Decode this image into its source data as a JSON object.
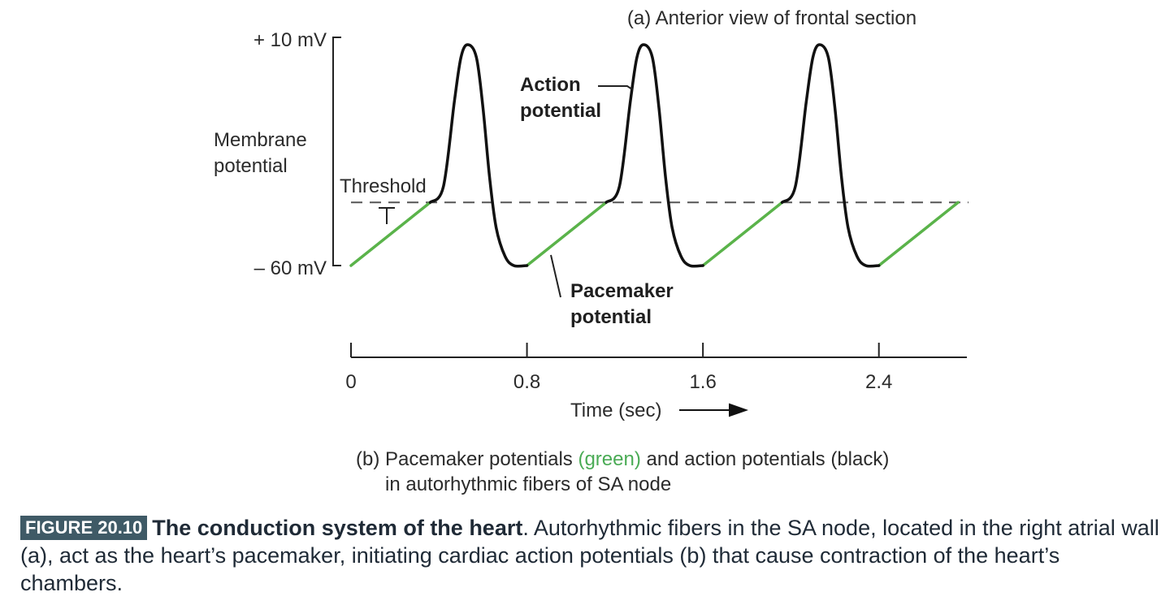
{
  "chart_data": {
    "type": "line",
    "panel_title": "(a) Anterior view of frontal section",
    "ylabel_lines": [
      "Membrane",
      "potential"
    ],
    "xlabel": "Time (sec)",
    "y_ticks": [
      "+ 10 mV",
      "– 60 mV"
    ],
    "ylim_mV": [
      -60,
      10
    ],
    "threshold_mV": -40,
    "x_ticks": [
      {
        "value": 0,
        "label": "0"
      },
      {
        "value": 0.8,
        "label": "0.8"
      },
      {
        "value": 1.6,
        "label": "1.6"
      },
      {
        "value": 2.4,
        "label": "2.4"
      }
    ],
    "xlim": [
      0,
      2.8
    ],
    "series": [
      {
        "kind": "pacemaker",
        "color": "#5ab34a",
        "segments": [
          [
            [
              0,
              -60
            ],
            [
              0.36,
              -40
            ]
          ],
          [
            [
              0.8,
              -60
            ],
            [
              1.16,
              -40
            ]
          ],
          [
            [
              1.6,
              -60
            ],
            [
              1.96,
              -40
            ]
          ],
          [
            [
              2.4,
              -60
            ],
            [
              2.76,
              -40
            ]
          ]
        ]
      },
      {
        "kind": "action",
        "color": "#111111",
        "segments": [
          [
            [
              0.36,
              -40
            ],
            [
              0.42,
              -35
            ],
            [
              0.47,
              -8
            ],
            [
              0.5,
              6
            ],
            [
              0.53,
              10
            ],
            [
              0.57,
              6
            ],
            [
              0.6,
              -10
            ],
            [
              0.63,
              -32
            ],
            [
              0.66,
              -48
            ],
            [
              0.7,
              -57
            ],
            [
              0.74,
              -60
            ],
            [
              0.8,
              -60
            ]
          ],
          [
            [
              1.16,
              -40
            ],
            [
              1.22,
              -35
            ],
            [
              1.27,
              -8
            ],
            [
              1.3,
              6
            ],
            [
              1.33,
              10
            ],
            [
              1.37,
              6
            ],
            [
              1.4,
              -10
            ],
            [
              1.43,
              -32
            ],
            [
              1.46,
              -48
            ],
            [
              1.5,
              -57
            ],
            [
              1.54,
              -60
            ],
            [
              1.6,
              -60
            ]
          ],
          [
            [
              1.96,
              -40
            ],
            [
              2.02,
              -35
            ],
            [
              2.07,
              -8
            ],
            [
              2.1,
              6
            ],
            [
              2.13,
              10
            ],
            [
              2.17,
              6
            ],
            [
              2.2,
              -10
            ],
            [
              2.23,
              -32
            ],
            [
              2.26,
              -48
            ],
            [
              2.3,
              -57
            ],
            [
              2.34,
              -60
            ],
            [
              2.4,
              -60
            ]
          ]
        ]
      }
    ],
    "annotations": {
      "threshold": "Threshold",
      "action_potential": [
        "Action",
        "potential"
      ],
      "pacemaker_potential": [
        "Pacemaker",
        "potential"
      ]
    },
    "panel_b_caption": {
      "line1_prefix": "(b) Pacemaker potentials ",
      "line1_green": "(green)",
      "line1_suffix": " and action potentials (black)",
      "line2": "in autorhythmic fibers of SA node"
    }
  },
  "figure_caption": {
    "badge": "FIGURE 20.10",
    "title": "The conduction system of the heart",
    "text": ". Autorhythmic fibers in the SA node, located in the right atrial wall (a), act as the heart’s pacemaker, initiating cardiac action potentials (b) that cause contraction of the heart’s chambers."
  },
  "colors": {
    "green_text": "#4aab55",
    "badge_bg": "#3f5a66",
    "dash": "#555555"
  }
}
